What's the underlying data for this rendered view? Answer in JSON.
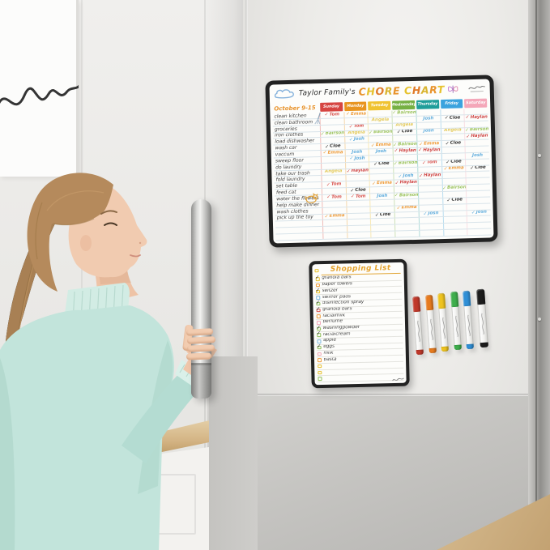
{
  "chore_chart": {
    "title_prefix": "Taylor Family's",
    "title_main": "CHORE CHART",
    "title_letter_colors": [
      "#e8932c",
      "#e6c22e",
      "#e07b2a",
      "#d9b430"
    ],
    "date_label": "October 9-15",
    "days": [
      {
        "label": "Sunday",
        "color": "#d64541"
      },
      {
        "label": "Monday",
        "color": "#e8941f"
      },
      {
        "label": "Tuesday",
        "color": "#f0c330"
      },
      {
        "label": "Wednesday",
        "color": "#76b043"
      },
      {
        "label": "Thursday",
        "color": "#1f9e9a"
      },
      {
        "label": "Friday",
        "color": "#3ba3de"
      },
      {
        "label": "Saturday",
        "color": "#f4a7b9"
      }
    ],
    "name_colors": {
      "Tom": "#d9534f",
      "Emma": "#ef9c3a",
      "Angela": "#e4cb5e",
      "Bairson": "#9dc45f",
      "Josh": "#62aede",
      "Cloe": "#333333",
      "Haylan": "#cf4545"
    },
    "rows": [
      {
        "task": "clean kitchen",
        "cells": [
          {
            "name": "Tom",
            "checked": true
          },
          {
            "name": "Emma",
            "checked": true
          },
          null,
          {
            "name": "Bairson",
            "checked": true
          },
          null,
          null,
          null
        ]
      },
      {
        "task": "clean bathroom",
        "cells": [
          null,
          null,
          {
            "name": "Angela",
            "checked": false
          },
          null,
          {
            "name": "Josh",
            "checked": false
          },
          {
            "name": "Cloe",
            "checked": true
          },
          {
            "name": "Haylan",
            "checked": true
          }
        ]
      },
      {
        "task": "groceries",
        "cells": [
          null,
          {
            "name": "Tom",
            "checked": true
          },
          null,
          {
            "name": "Angela",
            "checked": false
          },
          null,
          null,
          null
        ]
      },
      {
        "task": "iron clothes",
        "cells": [
          {
            "name": "Bairson",
            "checked": true
          },
          {
            "name": "Angela",
            "checked": false
          },
          {
            "name": "Bairson",
            "checked": true
          },
          {
            "name": "Cloe",
            "checked": true
          },
          {
            "name": "Josh",
            "checked": false
          },
          {
            "name": "Angela",
            "checked": false
          },
          {
            "name": "Bairson",
            "checked": true
          }
        ]
      },
      {
        "task": "load dishwasher",
        "cells": [
          null,
          {
            "name": "Josh",
            "checked": true
          },
          null,
          null,
          null,
          null,
          {
            "name": "Haylan",
            "checked": true
          }
        ]
      },
      {
        "task": "wash car",
        "cells": [
          {
            "name": "Cloe",
            "checked": true
          },
          null,
          {
            "name": "Emma",
            "checked": true
          },
          {
            "name": "Bairson",
            "checked": true
          },
          {
            "name": "Emma",
            "checked": true
          },
          {
            "name": "Cloe",
            "checked": true
          },
          null
        ]
      },
      {
        "task": "vaccum",
        "cells": [
          {
            "name": "Emma",
            "checked": true
          },
          {
            "name": "Josh",
            "checked": false
          },
          {
            "name": "Josh",
            "checked": false
          },
          {
            "name": "Haylan",
            "checked": true
          },
          {
            "name": "Haylan",
            "checked": true
          },
          null,
          null
        ]
      },
      {
        "task": "sweep floor",
        "cells": [
          null,
          {
            "name": "Josh",
            "checked": true
          },
          null,
          null,
          null,
          null,
          {
            "name": "Josh",
            "checked": false
          }
        ]
      },
      {
        "task": "do laundry",
        "cells": [
          null,
          null,
          {
            "name": "Cloe",
            "checked": true
          },
          {
            "name": "Bairson",
            "checked": true
          },
          {
            "name": "Tom",
            "checked": true
          },
          {
            "name": "Cloe",
            "checked": true
          },
          null
        ]
      },
      {
        "task": "take our trash",
        "cells": [
          {
            "name": "Angela",
            "checked": false
          },
          {
            "name": "Haylan",
            "checked": true
          },
          null,
          null,
          null,
          {
            "name": "Emma",
            "checked": true
          },
          {
            "name": "Cloe",
            "checked": true
          }
        ]
      },
      {
        "task": "fold laundry",
        "cells": [
          null,
          null,
          null,
          {
            "name": "Josh",
            "checked": true
          },
          {
            "name": "Haylan",
            "checked": true
          },
          null,
          null
        ]
      },
      {
        "task": "set table",
        "cells": [
          {
            "name": "Tom",
            "checked": true
          },
          null,
          {
            "name": "Emma",
            "checked": true
          },
          {
            "name": "Haylan",
            "checked": true
          },
          null,
          null,
          null
        ]
      },
      {
        "task": "feed cat",
        "cells": [
          null,
          {
            "name": "Cloe",
            "checked": true
          },
          null,
          null,
          null,
          {
            "name": "Bairson",
            "checked": true
          },
          null
        ]
      },
      {
        "task": "water the flowers",
        "cells": [
          {
            "name": "Tom",
            "checked": true
          },
          {
            "name": "Tom",
            "checked": true
          },
          {
            "name": "Josh",
            "checked": false
          },
          {
            "name": "Bairson",
            "checked": true
          },
          null,
          null,
          null
        ]
      },
      {
        "task": "help make dinner",
        "cells": [
          null,
          null,
          null,
          null,
          null,
          {
            "name": "Cloe",
            "checked": true
          },
          null
        ]
      },
      {
        "task": "wash clothes",
        "cells": [
          null,
          null,
          null,
          {
            "name": "Emma",
            "checked": true
          },
          null,
          null,
          null
        ]
      },
      {
        "task": "pick up the toy",
        "cells": [
          {
            "name": "Emma",
            "checked": true
          },
          null,
          {
            "name": "Cloe",
            "checked": true
          },
          null,
          {
            "name": "Josh",
            "checked": true
          },
          null,
          {
            "name": "Josh",
            "checked": true
          }
        ]
      },
      {
        "task": "",
        "cells": [
          null,
          null,
          null,
          null,
          null,
          null,
          null
        ]
      },
      {
        "task": "",
        "cells": [
          null,
          null,
          null,
          null,
          null,
          null,
          null
        ]
      },
      {
        "task": "",
        "cells": [
          null,
          null,
          null,
          null,
          null,
          null,
          null
        ]
      }
    ]
  },
  "shopping_list": {
    "title": "Shopping List",
    "title_color": "#e5a32e",
    "items": [
      {
        "label": "granola bars",
        "checked": true,
        "box": "#e6c02e"
      },
      {
        "label": "paper towels",
        "checked": false,
        "box": "#ef9c3a"
      },
      {
        "label": "seltzer",
        "checked": true,
        "box": "#e6c02e"
      },
      {
        "label": "swiffer pads",
        "checked": false,
        "box": "#7db9e0"
      },
      {
        "label": "disinfection spray",
        "checked": true,
        "box": "#8fbf5a"
      },
      {
        "label": "granola bars",
        "checked": true,
        "box": "#d9534f"
      },
      {
        "label": "facialmilk",
        "checked": false,
        "box": "#ef9c3a"
      },
      {
        "label": "perfume",
        "checked": false,
        "box": "#f0a6b8"
      },
      {
        "label": "washingpowder",
        "checked": true,
        "box": "#8fbf5a"
      },
      {
        "label": "facialcream",
        "checked": true,
        "box": "#8fbf5a"
      },
      {
        "label": "apple",
        "checked": false,
        "box": "#7db9e0"
      },
      {
        "label": "eggs",
        "checked": true,
        "box": "#8fbf5a"
      },
      {
        "label": "milk",
        "checked": false,
        "box": "#f0a6b8"
      },
      {
        "label": "pasta",
        "checked": false,
        "box": "#ef9c3a"
      },
      {
        "label": "",
        "checked": false,
        "box": "#e6c02e"
      },
      {
        "label": "",
        "checked": false,
        "box": "#e6c02e"
      },
      {
        "label": "",
        "checked": false,
        "box": "#8fbf5a"
      }
    ]
  },
  "markers": {
    "cap_colors": [
      "#c0392b",
      "#e67a1e",
      "#eec31f",
      "#3fae4c",
      "#2f8fd6",
      "#1c1c1c"
    ]
  }
}
